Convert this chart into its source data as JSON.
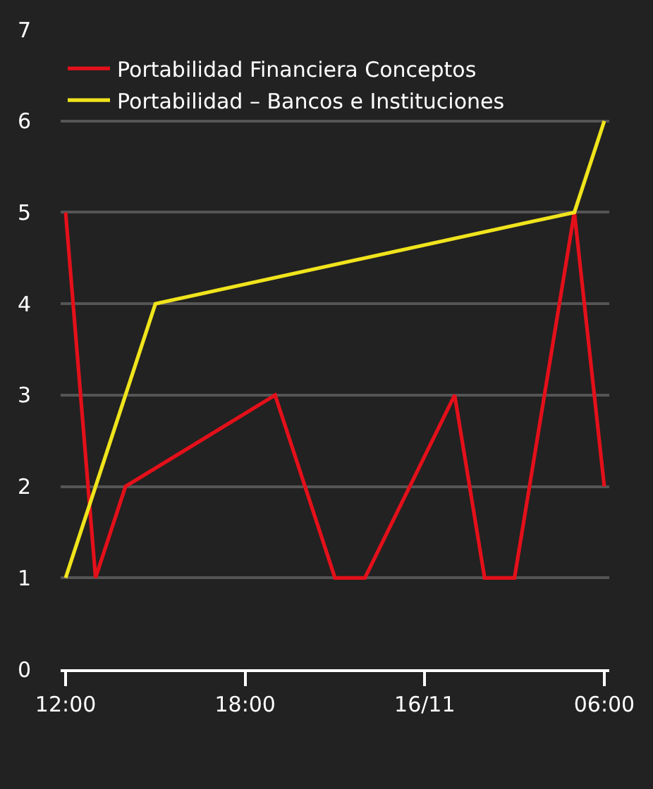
{
  "chart_data": {
    "type": "line",
    "series": [
      {
        "name": "Portabilidad Financiera Conceptos",
        "color": "#e3101a",
        "x": [
          "--11-15T12:00",
          "--11-15T13:00",
          "--11-15T14:00",
          "--11-15T19:00",
          "--11-15T21:00",
          "--11-15T22:00",
          "--11-16T01:00",
          "--11-16T02:00",
          "--11-16T03:00",
          "--11-16T05:00",
          "--11-16T06:00"
        ],
        "values": [
          5,
          1,
          2,
          3,
          1,
          1,
          3,
          1,
          1,
          5,
          2
        ]
      },
      {
        "name": "Portabilidad – Bancos e Instituciones",
        "color": "#f0e41c",
        "x": [
          "--11-15T12:00",
          "--11-15T15:00",
          "--11-16T05:00",
          "--11-16T06:00"
        ],
        "values": [
          1,
          4,
          5,
          6
        ]
      }
    ],
    "xlim": [
      "--11-15T11:50",
      "--11-16T06:10"
    ],
    "xticks": [
      {
        "value": "--11-15T12:00",
        "label": "12:00"
      },
      {
        "value": "--11-15T18:00",
        "label": "18:00"
      },
      {
        "value": "--11-16T00:00",
        "label": "16/11"
      },
      {
        "value": "--11-16T06:00",
        "label": "06:00"
      }
    ],
    "ylim": [
      0,
      7
    ],
    "yticks": [
      0,
      1,
      2,
      3,
      4,
      5,
      6,
      7
    ],
    "grid": "y",
    "legend": "top left",
    "marker": "none",
    "line_style": "solid"
  }
}
